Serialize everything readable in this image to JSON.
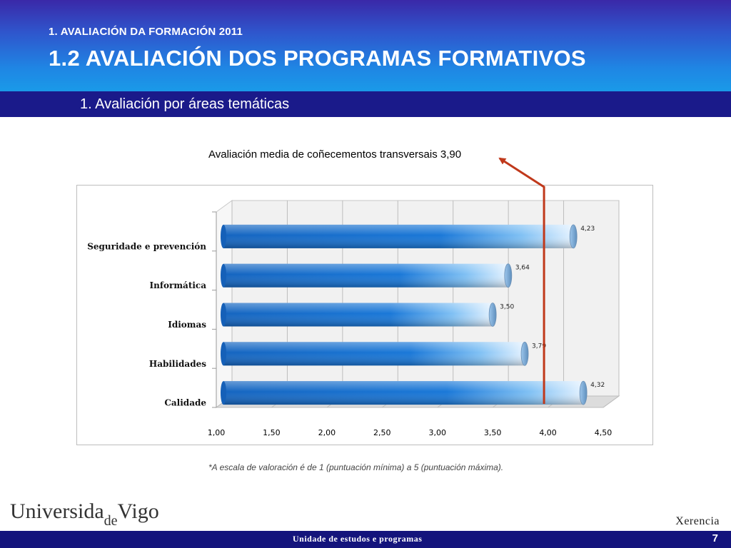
{
  "header": {
    "supertitle": "1. AVALIACIÓN DA FORMACIÓN 2011",
    "title": "1.2 AVALIACIÓN DOS PROGRAMAS FORMATIVOS"
  },
  "section": {
    "subtitle": "1. Avaliación por áreas temáticas"
  },
  "average_note": "Avaliación media de coñecementos transversais 3,90",
  "chart_data": {
    "type": "bar",
    "orientation": "horizontal",
    "categories": [
      "Seguridade e prevención",
      "Informática",
      "Idiomas",
      "Habilidades",
      "Calidade"
    ],
    "values": [
      4.23,
      3.64,
      3.5,
      3.79,
      4.32
    ],
    "value_labels": [
      "4,23",
      "3,64",
      "3,50",
      "3,79",
      "4,32"
    ],
    "x_ticks": [
      "1,00",
      "1,50",
      "2,00",
      "2,50",
      "3,00",
      "3,50",
      "4,00",
      "4,50"
    ],
    "xlim": [
      1.0,
      4.5
    ],
    "grid": true,
    "reference_line": {
      "value": 3.9
    },
    "colors": {
      "bar": "#1565c0",
      "bar_light": "#dbeeff",
      "reference": "#c0391b"
    }
  },
  "footnote": "*A escala de valoración é de 1 (puntuación mínima) a 5 (puntuación máxima).",
  "footer": {
    "logo_left": "Universida",
    "logo_de": "de",
    "logo_right": "Vigo",
    "xerencia": "Xerencia",
    "unit": "Unidade de estudos e programas",
    "page_number": "7"
  }
}
